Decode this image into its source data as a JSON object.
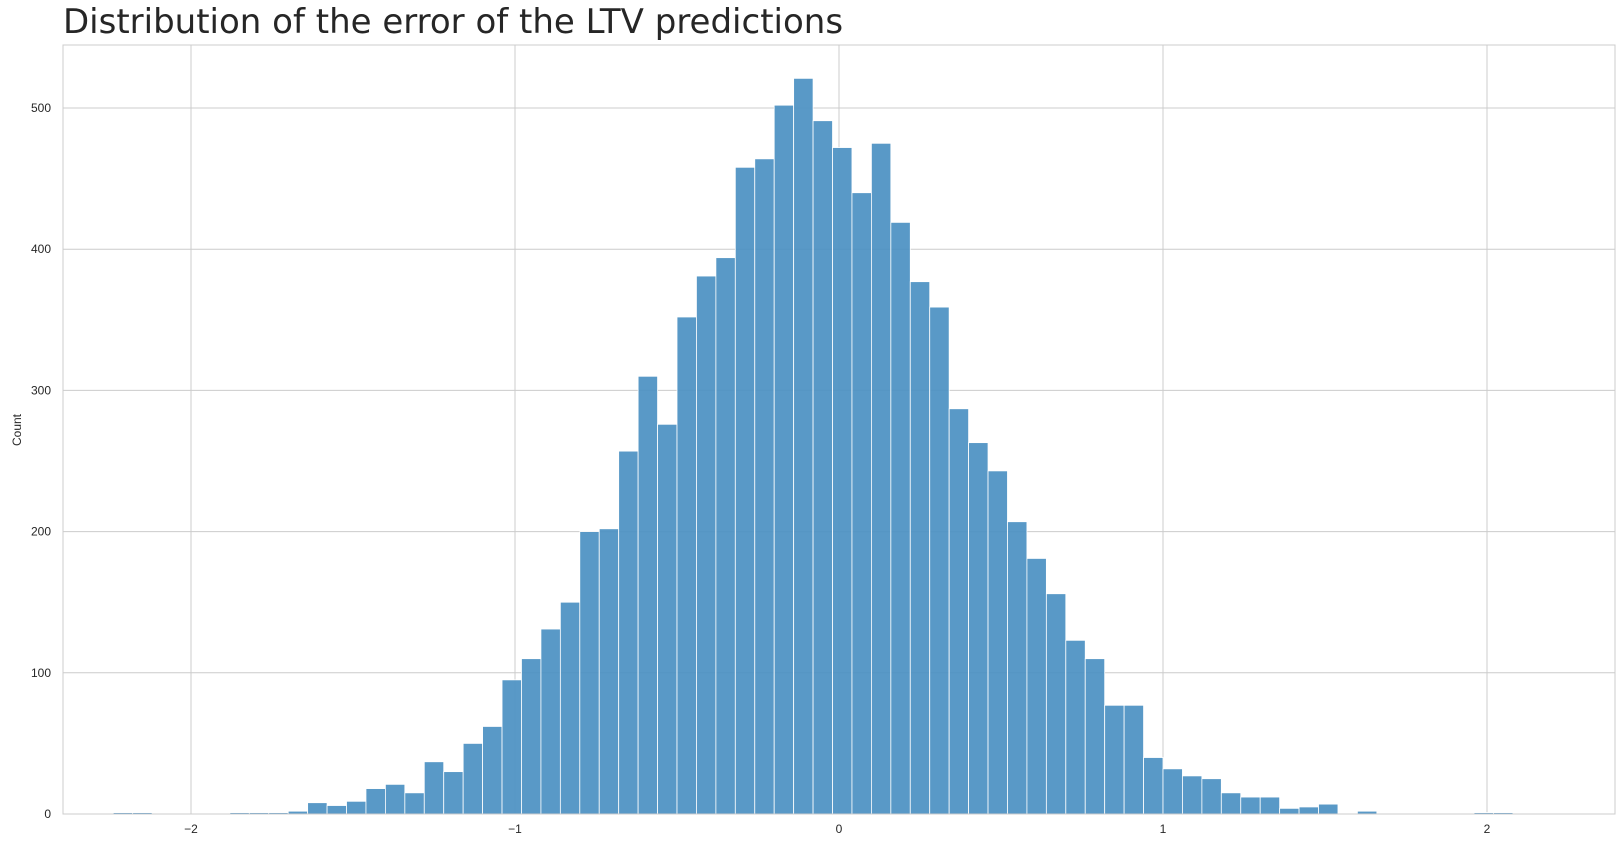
{
  "chart_data": {
    "type": "bar",
    "title": "Distribution of the error of the LTV predictions",
    "xlabel": "",
    "ylabel": "Count",
    "xlim": [
      -2.4,
      2.2
    ],
    "ylim": [
      0,
      520
    ],
    "xticks": [
      -2,
      -1,
      0,
      1,
      2
    ],
    "xtick_labels": [
      "−2",
      "−1",
      "0",
      "1",
      "2"
    ],
    "yticks": [
      0,
      100,
      200,
      300,
      400,
      500
    ],
    "ytick_labels": [
      "0",
      "100",
      "200",
      "300",
      "400",
      "500"
    ],
    "grid": true,
    "legend": "none",
    "bar_color": "#4c91c3",
    "grid_color": "#cccccc",
    "bin_start": -2.24,
    "bin_width": 0.06,
    "values": [
      1,
      1,
      0,
      0,
      0,
      0,
      1,
      1,
      1,
      2,
      8,
      6,
      9,
      18,
      21,
      15,
      37,
      30,
      50,
      62,
      95,
      110,
      131,
      150,
      200,
      202,
      257,
      310,
      276,
      352,
      381,
      394,
      458,
      464,
      502,
      521,
      491,
      472,
      440,
      475,
      419,
      377,
      359,
      287,
      263,
      243,
      207,
      181,
      156,
      123,
      110,
      77,
      77,
      40,
      32,
      27,
      25,
      15,
      12,
      12,
      4,
      5,
      7,
      0,
      2,
      0,
      0,
      0,
      0,
      0,
      1,
      1
    ]
  }
}
